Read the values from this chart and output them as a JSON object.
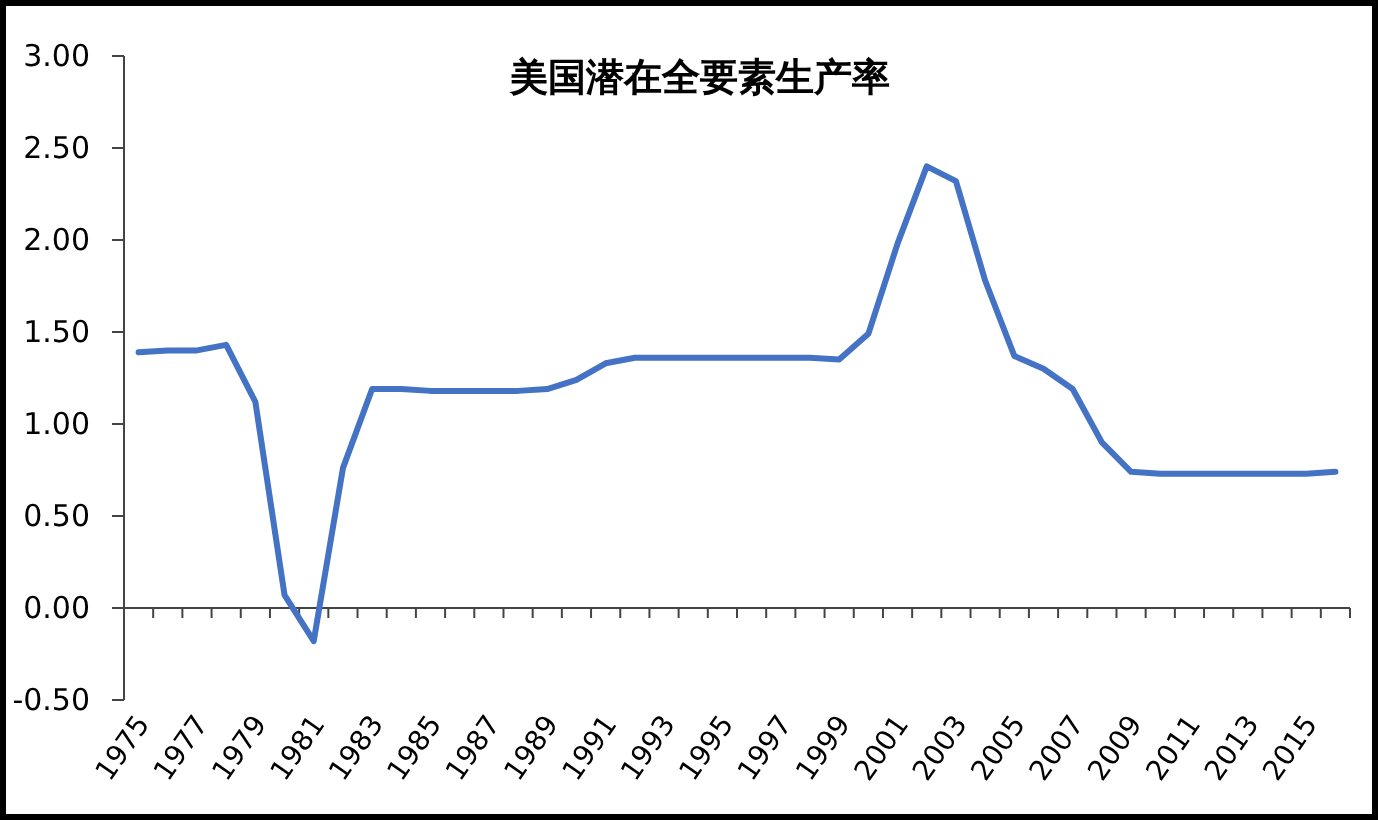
{
  "chart_data": {
    "type": "line",
    "title": "美国潜在全要素生产率",
    "categories": [
      "1975",
      null,
      "1977",
      null,
      "1979",
      null,
      "1981",
      null,
      "1983",
      null,
      "1985",
      null,
      "1987",
      null,
      "1989",
      null,
      "1991",
      null,
      "1993",
      null,
      "1995",
      null,
      "1997",
      null,
      "1999",
      null,
      "2001",
      null,
      "2003",
      null,
      "2005",
      null,
      "2007",
      null,
      "2009",
      null,
      "2011",
      null,
      "2013",
      null,
      "2015",
      null
    ],
    "series": [
      {
        "color": "#4472c4",
        "values": [
          1.39,
          1.4,
          1.4,
          1.43,
          1.12,
          0.07,
          -0.18,
          0.76,
          1.19,
          1.19,
          1.18,
          1.18,
          1.18,
          1.18,
          1.19,
          1.24,
          1.33,
          1.36,
          1.36,
          1.36,
          1.36,
          1.36,
          1.36,
          1.36,
          1.35,
          1.49,
          1.98,
          2.4,
          2.32,
          1.78,
          1.37,
          1.3,
          1.19,
          0.9,
          0.74,
          0.73,
          0.73,
          0.73,
          0.73,
          0.73,
          0.73,
          0.74
        ]
      }
    ],
    "ylim": [
      -0.5,
      3
    ],
    "yticks": [
      {
        "value": -0.5,
        "label": "-0.50"
      },
      {
        "value": 0,
        "label": "0.00"
      },
      {
        "value": 0.5,
        "label": "0.50"
      },
      {
        "value": 1,
        "label": "1.00"
      },
      {
        "value": 1.5,
        "label": "1.50"
      },
      {
        "value": 2,
        "label": "2.00"
      },
      {
        "value": 2.5,
        "label": "2.50"
      },
      {
        "value": 3,
        "label": "3.00"
      }
    ],
    "marker": "none",
    "line_style": "solid"
  }
}
